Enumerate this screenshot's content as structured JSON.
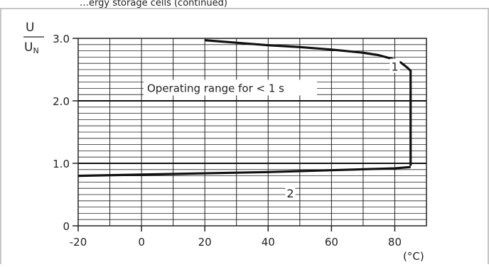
{
  "header_text": "…ergy storage cells (continued)",
  "chart_data": {
    "type": "line",
    "xlim": [
      -20,
      90
    ],
    "ylim": [
      0,
      3
    ],
    "x_ticks": [
      -20,
      0,
      20,
      40,
      60,
      80
    ],
    "x_tick_labels": [
      "-20",
      "0",
      "20",
      "40",
      "60",
      "80"
    ],
    "y_ticks": [
      0,
      1,
      2,
      3
    ],
    "y_tick_labels": [
      "0",
      "1.0",
      "2.0",
      "3.0"
    ],
    "xunit": "(°C)",
    "ylabel_numerator": "U",
    "ylabel_denominator_main": "U",
    "ylabel_denominator_sub": "N",
    "grid": true,
    "annotation": "Operating range for < 1 s",
    "series": [
      {
        "label": "1",
        "x": [
          20,
          30,
          40,
          50,
          60,
          70,
          75,
          80,
          82,
          84,
          85,
          85
        ],
        "y": [
          2.97,
          2.93,
          2.89,
          2.86,
          2.82,
          2.77,
          2.73,
          2.66,
          2.61,
          2.53,
          2.48,
          0.96
        ]
      },
      {
        "label": "2",
        "x": [
          -20,
          0,
          20,
          40,
          60,
          80,
          85
        ],
        "y": [
          0.8,
          0.82,
          0.84,
          0.86,
          0.89,
          0.92,
          0.94
        ]
      }
    ]
  }
}
